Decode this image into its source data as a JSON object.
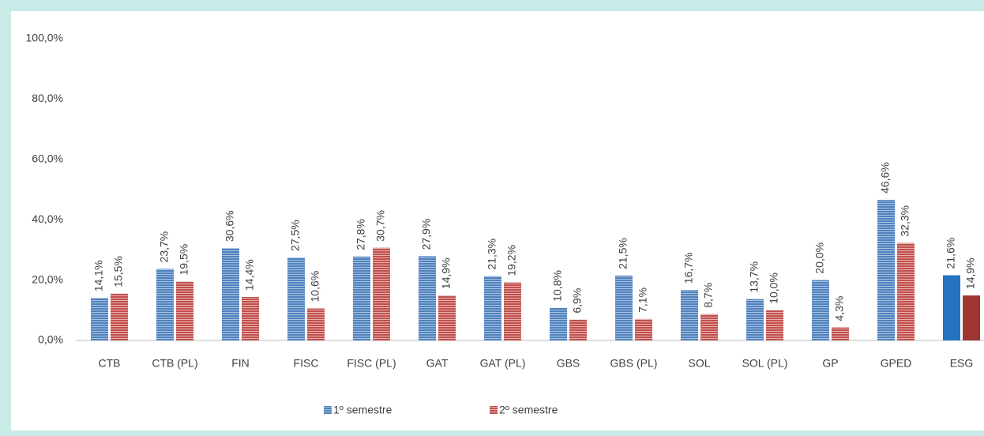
{
  "chart_data": {
    "type": "bar",
    "categories": [
      "CTB",
      "CTB (PL)",
      "FIN",
      "FISC",
      "FISC (PL)",
      "GAT",
      "GAT (PL)",
      "GBS",
      "GBS (PL)",
      "SOL",
      "SOL (PL)",
      "GP",
      "GPED",
      "ESG"
    ],
    "series": [
      {
        "name": "1º semestre",
        "color": "#4f81bd",
        "highlight_color": "#2474bf",
        "values": [
          14.1,
          23.7,
          30.6,
          27.5,
          27.8,
          27.9,
          21.3,
          10.8,
          21.5,
          16.7,
          13.7,
          20.0,
          46.6,
          21.6
        ],
        "value_labels": [
          "14,1%",
          "23,7%",
          "30,6%",
          "27,5%",
          "27,8%",
          "27,9%",
          "21,3%",
          "10,8%",
          "21,5%",
          "16,7%",
          "13,7%",
          "20,0%",
          "46,6%",
          "21,6%"
        ]
      },
      {
        "name": "2º semestre",
        "color": "#c0504d",
        "highlight_color": "#9e3634",
        "values": [
          15.5,
          19.5,
          14.4,
          10.6,
          30.7,
          14.9,
          19.2,
          6.9,
          7.1,
          8.7,
          10.0,
          4.3,
          32.3,
          14.9
        ],
        "value_labels": [
          "15,5%",
          "19,5%",
          "14,4%",
          "10,6%",
          "30,7%",
          "14,9%",
          "19,2%",
          "6,9%",
          "7,1%",
          "8,7%",
          "10,0%",
          "4,3%",
          "32,3%",
          "14,9%"
        ]
      }
    ],
    "ylim": [
      0,
      100
    ],
    "yticks": [
      {
        "value": 0,
        "label": "0,0%"
      },
      {
        "value": 20,
        "label": "20,0%"
      },
      {
        "value": 40,
        "label": "40,0%"
      },
      {
        "value": 60,
        "label": "60,0%"
      },
      {
        "value": 80,
        "label": "80,0%"
      },
      {
        "value": 100,
        "label": "100,0%"
      }
    ],
    "legend": "bottom"
  }
}
